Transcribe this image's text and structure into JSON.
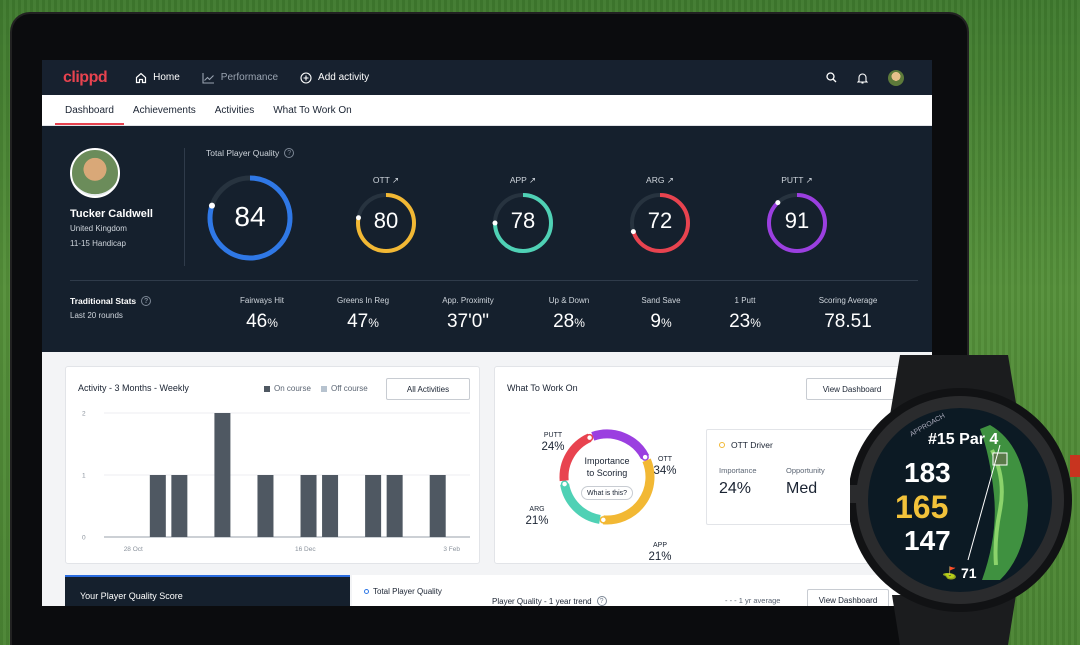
{
  "app": {
    "logo": "clippd"
  },
  "nav": {
    "home": "Home",
    "performance": "Performance",
    "add_activity": "Add activity"
  },
  "subnav": {
    "tabs": [
      "Dashboard",
      "Achievements",
      "Activities",
      "What To Work On"
    ]
  },
  "player": {
    "name": "Tucker Caldwell",
    "country": "United Kingdom",
    "handicap": "11-15 Handicap"
  },
  "quality": {
    "total_label": "Total Player Quality",
    "total": "84",
    "total_fraction": 0.8,
    "rings": [
      {
        "label": "OTT ↗",
        "value": "80",
        "color": "#f2b834",
        "fraction": 0.78
      },
      {
        "label": "APP ↗",
        "value": "78",
        "color": "#4fd1b5",
        "fraction": 0.75
      },
      {
        "label": "ARG ↗",
        "value": "72",
        "color": "#e8434f",
        "fraction": 0.7
      },
      {
        "label": "PUTT ↗",
        "value": "91",
        "color": "#9b3fe0",
        "fraction": 0.88
      }
    ],
    "total_color": "#2f78e6"
  },
  "traditional": {
    "title": "Traditional Stats",
    "subtitle": "Last 20 rounds",
    "stats": [
      {
        "label": "Fairways Hit",
        "value": "46",
        "unit": "%"
      },
      {
        "label": "Greens In Reg",
        "value": "47",
        "unit": "%"
      },
      {
        "label": "App. Proximity",
        "value": "37'0\"",
        "unit": ""
      },
      {
        "label": "Up & Down",
        "value": "28",
        "unit": "%"
      },
      {
        "label": "Sand Save",
        "value": "9",
        "unit": "%"
      },
      {
        "label": "1 Putt",
        "value": "23",
        "unit": "%"
      },
      {
        "label": "Scoring Average",
        "value": "78.51",
        "unit": ""
      }
    ]
  },
  "activity": {
    "title": "Activity - 3 Months - Weekly",
    "legend_on": "On course",
    "legend_off": "Off course",
    "button": "All Activities",
    "y_ticks": [
      "2",
      "1",
      "0"
    ],
    "x_ticks": [
      "28 Oct",
      "16 Dec",
      "3 Feb"
    ],
    "on_color": "#4f5862",
    "off_color": "#b7c3cf",
    "bars": [
      0,
      0,
      1,
      1,
      0,
      2,
      0,
      1,
      0,
      1,
      1,
      0,
      1,
      1,
      0,
      1,
      0
    ]
  },
  "wtwo": {
    "title": "What To Work On",
    "button": "View Dashboard",
    "center1": "Importance",
    "center2": "to Scoring",
    "center_btn": "What is this?",
    "segments": [
      {
        "name": "PUTT",
        "value": "24%",
        "color": "#9b3fe0",
        "share": 24
      },
      {
        "name": "OTT",
        "value": "34%",
        "color": "#f2b834",
        "share": 34
      },
      {
        "name": "APP",
        "value": "21%",
        "color": "#4fd1b5",
        "share": 21
      },
      {
        "name": "ARG",
        "value": "21%",
        "color": "#e8434f",
        "share": 21
      }
    ],
    "focus": {
      "title": "OTT Driver",
      "imp_label": "Importance",
      "imp_value": "24%",
      "opp_label": "Opportunity",
      "opp_value": "Med"
    }
  },
  "bottom": {
    "pq_score": "Your Player Quality Score",
    "total_pq": "Total Player Quality",
    "trend": "Player Quality - 1 year trend",
    "avg": "1 yr average",
    "button": "View Dashboard"
  },
  "watch": {
    "hole": "#15 Par 4",
    "back": "183",
    "middle": "165",
    "front": "147",
    "bottom": "71",
    "bezel": "APPROACH"
  }
}
